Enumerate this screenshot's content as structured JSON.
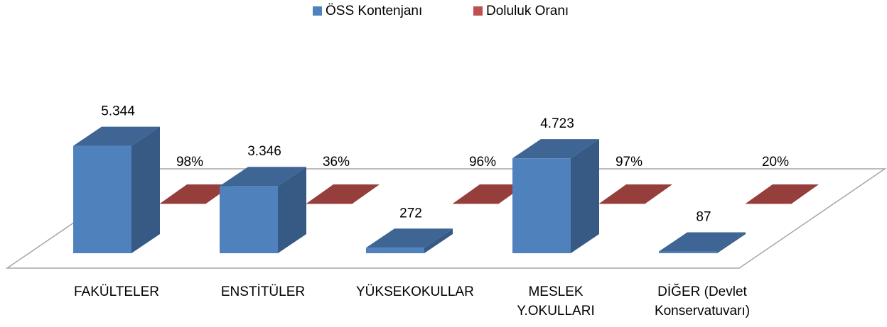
{
  "chart_data": {
    "type": "bar3d",
    "categories": [
      "FAKÜLTELER",
      "ENSTİTÜLER",
      "YÜKSEKOKULLAR",
      "MESLEK Y.OKULLARI",
      "DİĞER (Devlet Konservatuvarı)"
    ],
    "series": [
      {
        "name": "ÖSS Kontenjanı",
        "color": "#4f81bd",
        "values": [
          5344,
          3346,
          272,
          4723,
          87
        ],
        "value_labels": [
          "5.344",
          "3.346",
          "272",
          "4.723",
          "87"
        ]
      },
      {
        "name": "Doluluk Oranı",
        "color": "#c0504d",
        "values": [
          0.98,
          0.36,
          0.96,
          0.97,
          0.2
        ],
        "value_labels": [
          "98%",
          "36%",
          "96%",
          "97%",
          "20%"
        ]
      }
    ],
    "ylim": [
      0,
      6000
    ],
    "legend": "top"
  }
}
